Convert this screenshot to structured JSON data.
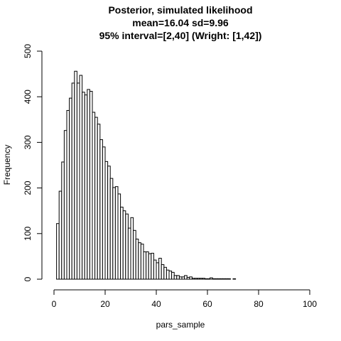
{
  "chart_data": {
    "type": "bar",
    "title": "Posterior, simulated likelihood",
    "subtitle": "mean=16.04 sd=9.96",
    "subtitle2": "95% interval=[2,40] (Wright: [1,42])",
    "xlabel": "pars_sample",
    "ylabel": "Frequency",
    "xlim": [
      0,
      100
    ],
    "ylim": [
      0,
      500
    ],
    "xticks": [
      "0",
      "20",
      "40",
      "60",
      "80",
      "100"
    ],
    "yticks": [
      "0",
      "100",
      "200",
      "300",
      "400",
      "500"
    ],
    "bin_width": 1,
    "bin_start": 0,
    "values": [
      0,
      122,
      193,
      257,
      326,
      370,
      397,
      430,
      456,
      430,
      447,
      410,
      404,
      416,
      412,
      366,
      355,
      340,
      306,
      290,
      258,
      248,
      221,
      201,
      203,
      187,
      158,
      150,
      143,
      112,
      135,
      107,
      88,
      80,
      77,
      60,
      60,
      56,
      57,
      42,
      36,
      46,
      32,
      26,
      20,
      18,
      15,
      8,
      8,
      5,
      5,
      8,
      4,
      5,
      2,
      2,
      2,
      2,
      2,
      1,
      1,
      3,
      1,
      1,
      1,
      1,
      1,
      1,
      1,
      0,
      1,
      0,
      0,
      0,
      0,
      0,
      0,
      0,
      0,
      0,
      0,
      0,
      0,
      0,
      0,
      0,
      0,
      0,
      0,
      0,
      0,
      0,
      0,
      0,
      0,
      0,
      0,
      0,
      0,
      0
    ]
  }
}
